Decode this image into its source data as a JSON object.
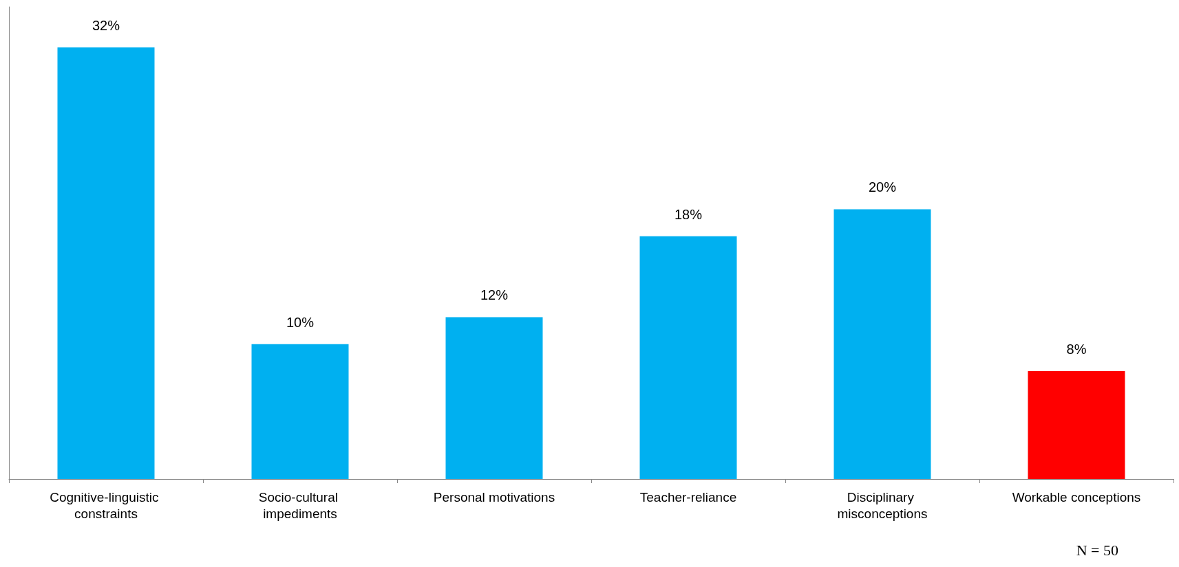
{
  "chart_data": {
    "type": "bar",
    "categories": [
      "Cognitive-linguistic constraints",
      "Socio-cultural impediments",
      "Personal motivations",
      "Teacher-reliance",
      "Disciplinary misconceptions",
      "Workable conceptions"
    ],
    "values": [
      32,
      10,
      12,
      18,
      20,
      8
    ],
    "value_labels": [
      "32%",
      "10%",
      "12%",
      "18%",
      "20%",
      "8%"
    ],
    "colors": [
      "#00b0f0",
      "#00b0f0",
      "#00b0f0",
      "#00b0f0",
      "#00b0f0",
      "#ff0000"
    ],
    "grid": false,
    "tick_labels": "x",
    "annotations": [
      "N = 50"
    ]
  }
}
